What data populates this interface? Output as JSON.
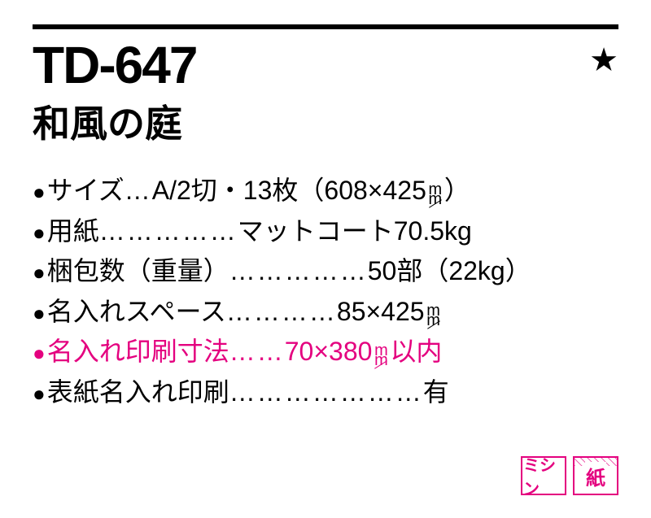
{
  "colors": {
    "accent": "#e4007f",
    "text": "#000000",
    "background": "#ffffff"
  },
  "header": {
    "code": "TD-647",
    "star": "★",
    "title": "和風の庭"
  },
  "specs": [
    {
      "bullet": "●",
      "label": "サイズ",
      "leader": "…",
      "value_pre": "A/2切・13枚（608×425",
      "unit_mm": true,
      "value_post": "）",
      "pink": false
    },
    {
      "bullet": "●",
      "label": "用紙",
      "leader": "……………",
      "value_pre": "マットコート70.5kg",
      "unit_mm": false,
      "value_post": "",
      "pink": false
    },
    {
      "bullet": "●",
      "label": "梱包数（重量）",
      "leader": "……………",
      "value_pre": "50部（22kg）",
      "unit_mm": false,
      "value_post": "",
      "pink": false
    },
    {
      "bullet": "●",
      "label": "名入れスペース",
      "leader": " …………",
      "value_pre": "85×425",
      "unit_mm": true,
      "value_post": "",
      "pink": false
    },
    {
      "bullet": "●",
      "label": "名入れ印刷寸法",
      "leader": " ……",
      "value_pre": "70×380",
      "unit_mm": true,
      "value_post": "以内",
      "pink": true
    },
    {
      "bullet": "●",
      "label": "表紙名入れ印刷",
      "leader": " …………………",
      "value_pre": "有",
      "unit_mm": false,
      "value_post": "",
      "pink": false
    }
  ],
  "mm_unit": {
    "top": "m",
    "bottom": "m"
  },
  "badges": [
    {
      "text": "ミシン",
      "hatch": "none"
    },
    {
      "text": "紙",
      "hatch": "top"
    }
  ]
}
